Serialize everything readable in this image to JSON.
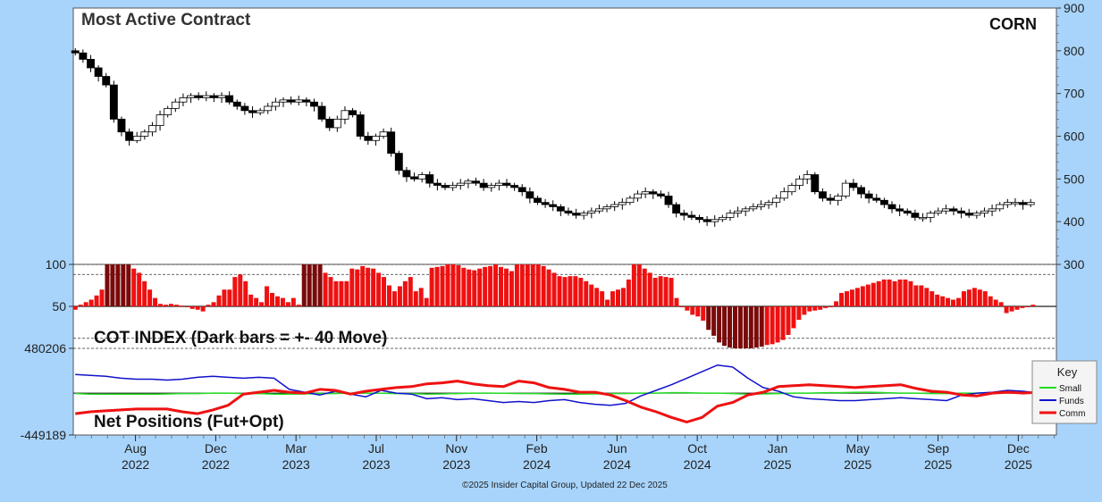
{
  "header": {
    "title": "Most Active Contract",
    "symbol": "CORN",
    "copyright": "©2025 Insider Capital Group, Updated 22 Dec 2025"
  },
  "colors": {
    "background": "#a8d4fb",
    "panel": "#ffffff",
    "bar_normal": "#ee1111",
    "bar_dark": "#7a0a0a",
    "small": "#22dd22",
    "funds": "#1111cc",
    "comm": "#ee1111"
  },
  "chart_data": [
    {
      "type": "candlestick",
      "title": "Most Active Contract",
      "symbol": "CORN",
      "y_right_ticks": [
        900,
        800,
        700,
        600,
        500,
        400
      ],
      "ylim": [
        300,
        900
      ],
      "x_labels": [
        {
          "month": "Aug",
          "year": "2022"
        },
        {
          "month": "Dec",
          "year": "2022"
        },
        {
          "month": "Mar",
          "year": "2023"
        },
        {
          "month": "Jul",
          "year": "2023"
        },
        {
          "month": "Nov",
          "year": "2023"
        },
        {
          "month": "Feb",
          "year": "2024"
        },
        {
          "month": "Jun",
          "year": "2024"
        },
        {
          "month": "Oct",
          "year": "2024"
        },
        {
          "month": "Jan",
          "year": "2025"
        },
        {
          "month": "May",
          "year": "2025"
        },
        {
          "month": "Sep",
          "year": "2025"
        },
        {
          "month": "Dec",
          "year": "2025"
        }
      ],
      "x_label_weeks": [
        15,
        35,
        55,
        75,
        95,
        115,
        135,
        155,
        175,
        195,
        215,
        235
      ],
      "close_weekly": [
        795,
        780,
        760,
        740,
        720,
        640,
        610,
        590,
        600,
        610,
        625,
        650,
        665,
        680,
        690,
        695,
        690,
        695,
        690,
        695,
        680,
        670,
        660,
        655,
        660,
        670,
        680,
        685,
        680,
        685,
        680,
        670,
        640,
        620,
        640,
        660,
        650,
        600,
        590,
        600,
        610,
        560,
        520,
        505,
        500,
        510,
        490,
        485,
        480,
        485,
        490,
        495,
        490,
        480,
        485,
        490,
        485,
        480,
        470,
        455,
        445,
        440,
        435,
        425,
        420,
        415,
        420,
        425,
        430,
        435,
        440,
        445,
        455,
        465,
        470,
        465,
        460,
        440,
        420,
        415,
        410,
        405,
        400,
        405,
        410,
        420,
        425,
        430,
        435,
        440,
        445,
        455,
        470,
        485,
        500,
        510,
        470,
        455,
        450,
        460,
        490,
        480,
        465,
        455,
        450,
        440,
        430,
        425,
        420,
        410,
        410,
        420,
        425,
        430,
        425,
        420,
        415,
        420,
        425,
        430,
        440,
        445,
        445,
        440,
        445
      ],
      "candle_week_offset": 0
    },
    {
      "type": "bar",
      "title": "COT INDEX (Dark bars = +- 40 Move)",
      "ylim": [
        0,
        100
      ],
      "y_left_ticks": [
        100,
        50
      ],
      "y_right_ticks": [
        300
      ],
      "reference_lines": [
        100,
        88,
        50,
        12,
        0
      ],
      "values": [
        46,
        52,
        55,
        58,
        63,
        70,
        100,
        100,
        100,
        100,
        100,
        95,
        90,
        80,
        70,
        60,
        53,
        52,
        53,
        52,
        51,
        49,
        47,
        46,
        44,
        52,
        55,
        63,
        70,
        70,
        85,
        88,
        80,
        64,
        60,
        55,
        74,
        66,
        62,
        60,
        55,
        60,
        52,
        100,
        100,
        100,
        100,
        90,
        85,
        80,
        80,
        80,
        95,
        94,
        98,
        96,
        95,
        90,
        85,
        75,
        68,
        74,
        80,
        85,
        68,
        72,
        60,
        96,
        97,
        98,
        100,
        100,
        99,
        96,
        94,
        93,
        95,
        97,
        98,
        100,
        97,
        95,
        92,
        100,
        100,
        100,
        100,
        100,
        98,
        94,
        90,
        86,
        85,
        86,
        86,
        84,
        80,
        76,
        72,
        68,
        58,
        68,
        70,
        72,
        82,
        100,
        100,
        95,
        90,
        84,
        86,
        85,
        84,
        60,
        50,
        45,
        40,
        38,
        33,
        22,
        15,
        7,
        3,
        1,
        0,
        0,
        0,
        0,
        1,
        2,
        4,
        5,
        7,
        10,
        16,
        24,
        34,
        40,
        44,
        45,
        46,
        48,
        50,
        56,
        66,
        68,
        70,
        72,
        74,
        76,
        78,
        80,
        82,
        82,
        80,
        82,
        82,
        80,
        75,
        75,
        72,
        68,
        64,
        62,
        60,
        58,
        60,
        68,
        70,
        72,
        70,
        68,
        62,
        58,
        55,
        42,
        44,
        46,
        48,
        50,
        52
      ],
      "dark_ranges": [
        [
          6,
          10
        ],
        [
          43,
          46
        ],
        [
          119,
          129
        ]
      ],
      "bar_start_week": 0
    },
    {
      "type": "line",
      "title": "Net Positions (Fut+Opt)",
      "y_left_ticks": [
        "480206",
        "-449189"
      ],
      "ylim": [
        -449189,
        480206
      ],
      "series": [
        {
          "name": "Small",
          "values": [
            -5,
            -10,
            -12,
            -10,
            -10,
            -12,
            -8,
            -5,
            -5,
            0,
            0,
            -5,
            -5,
            -10,
            -10,
            -8,
            -5,
            -5,
            0,
            0,
            -2,
            -5,
            -5,
            -10,
            -8,
            -5,
            0,
            0,
            -2,
            -5,
            -5,
            -8,
            -10,
            -10,
            -8,
            -5,
            -5,
            0,
            0,
            5,
            5,
            0,
            0,
            -5,
            -10,
            -8,
            -5,
            0,
            0,
            5,
            5,
            8,
            10,
            5,
            0,
            0,
            -5,
            -5,
            0,
            0,
            5,
            5,
            0,
            0
          ]
        },
        {
          "name": "Funds",
          "values": [
            200,
            190,
            180,
            160,
            150,
            150,
            140,
            150,
            170,
            180,
            170,
            160,
            170,
            160,
            40,
            10,
            -20,
            20,
            -10,
            -40,
            30,
            0,
            -10,
            -60,
            -50,
            -70,
            -60,
            -80,
            -100,
            -90,
            -100,
            -80,
            -70,
            -100,
            -120,
            -130,
            -110,
            -30,
            30,
            90,
            160,
            230,
            300,
            280,
            160,
            60,
            20,
            -40,
            -60,
            -70,
            -80,
            -80,
            -70,
            -60,
            -50,
            -60,
            -70,
            -80,
            -20,
            0,
            10,
            30,
            20,
            0
          ]
        },
        {
          "name": "Comm",
          "values": [
            -220,
            -200,
            -190,
            -180,
            -170,
            -170,
            -170,
            -200,
            -220,
            -180,
            -130,
            -10,
            10,
            30,
            10,
            0,
            40,
            30,
            -10,
            20,
            40,
            60,
            70,
            100,
            110,
            130,
            100,
            80,
            70,
            130,
            110,
            60,
            40,
            10,
            10,
            -20,
            -80,
            -150,
            -200,
            -260,
            -310,
            -260,
            -140,
            -100,
            -20,
            10,
            70,
            80,
            90,
            80,
            70,
            60,
            70,
            80,
            90,
            50,
            20,
            10,
            -20,
            -30,
            0,
            10,
            0,
            10
          ]
        }
      ],
      "legend": {
        "title": "Key",
        "position": "right",
        "items": [
          "Small",
          "Funds",
          "Comm"
        ]
      }
    }
  ]
}
